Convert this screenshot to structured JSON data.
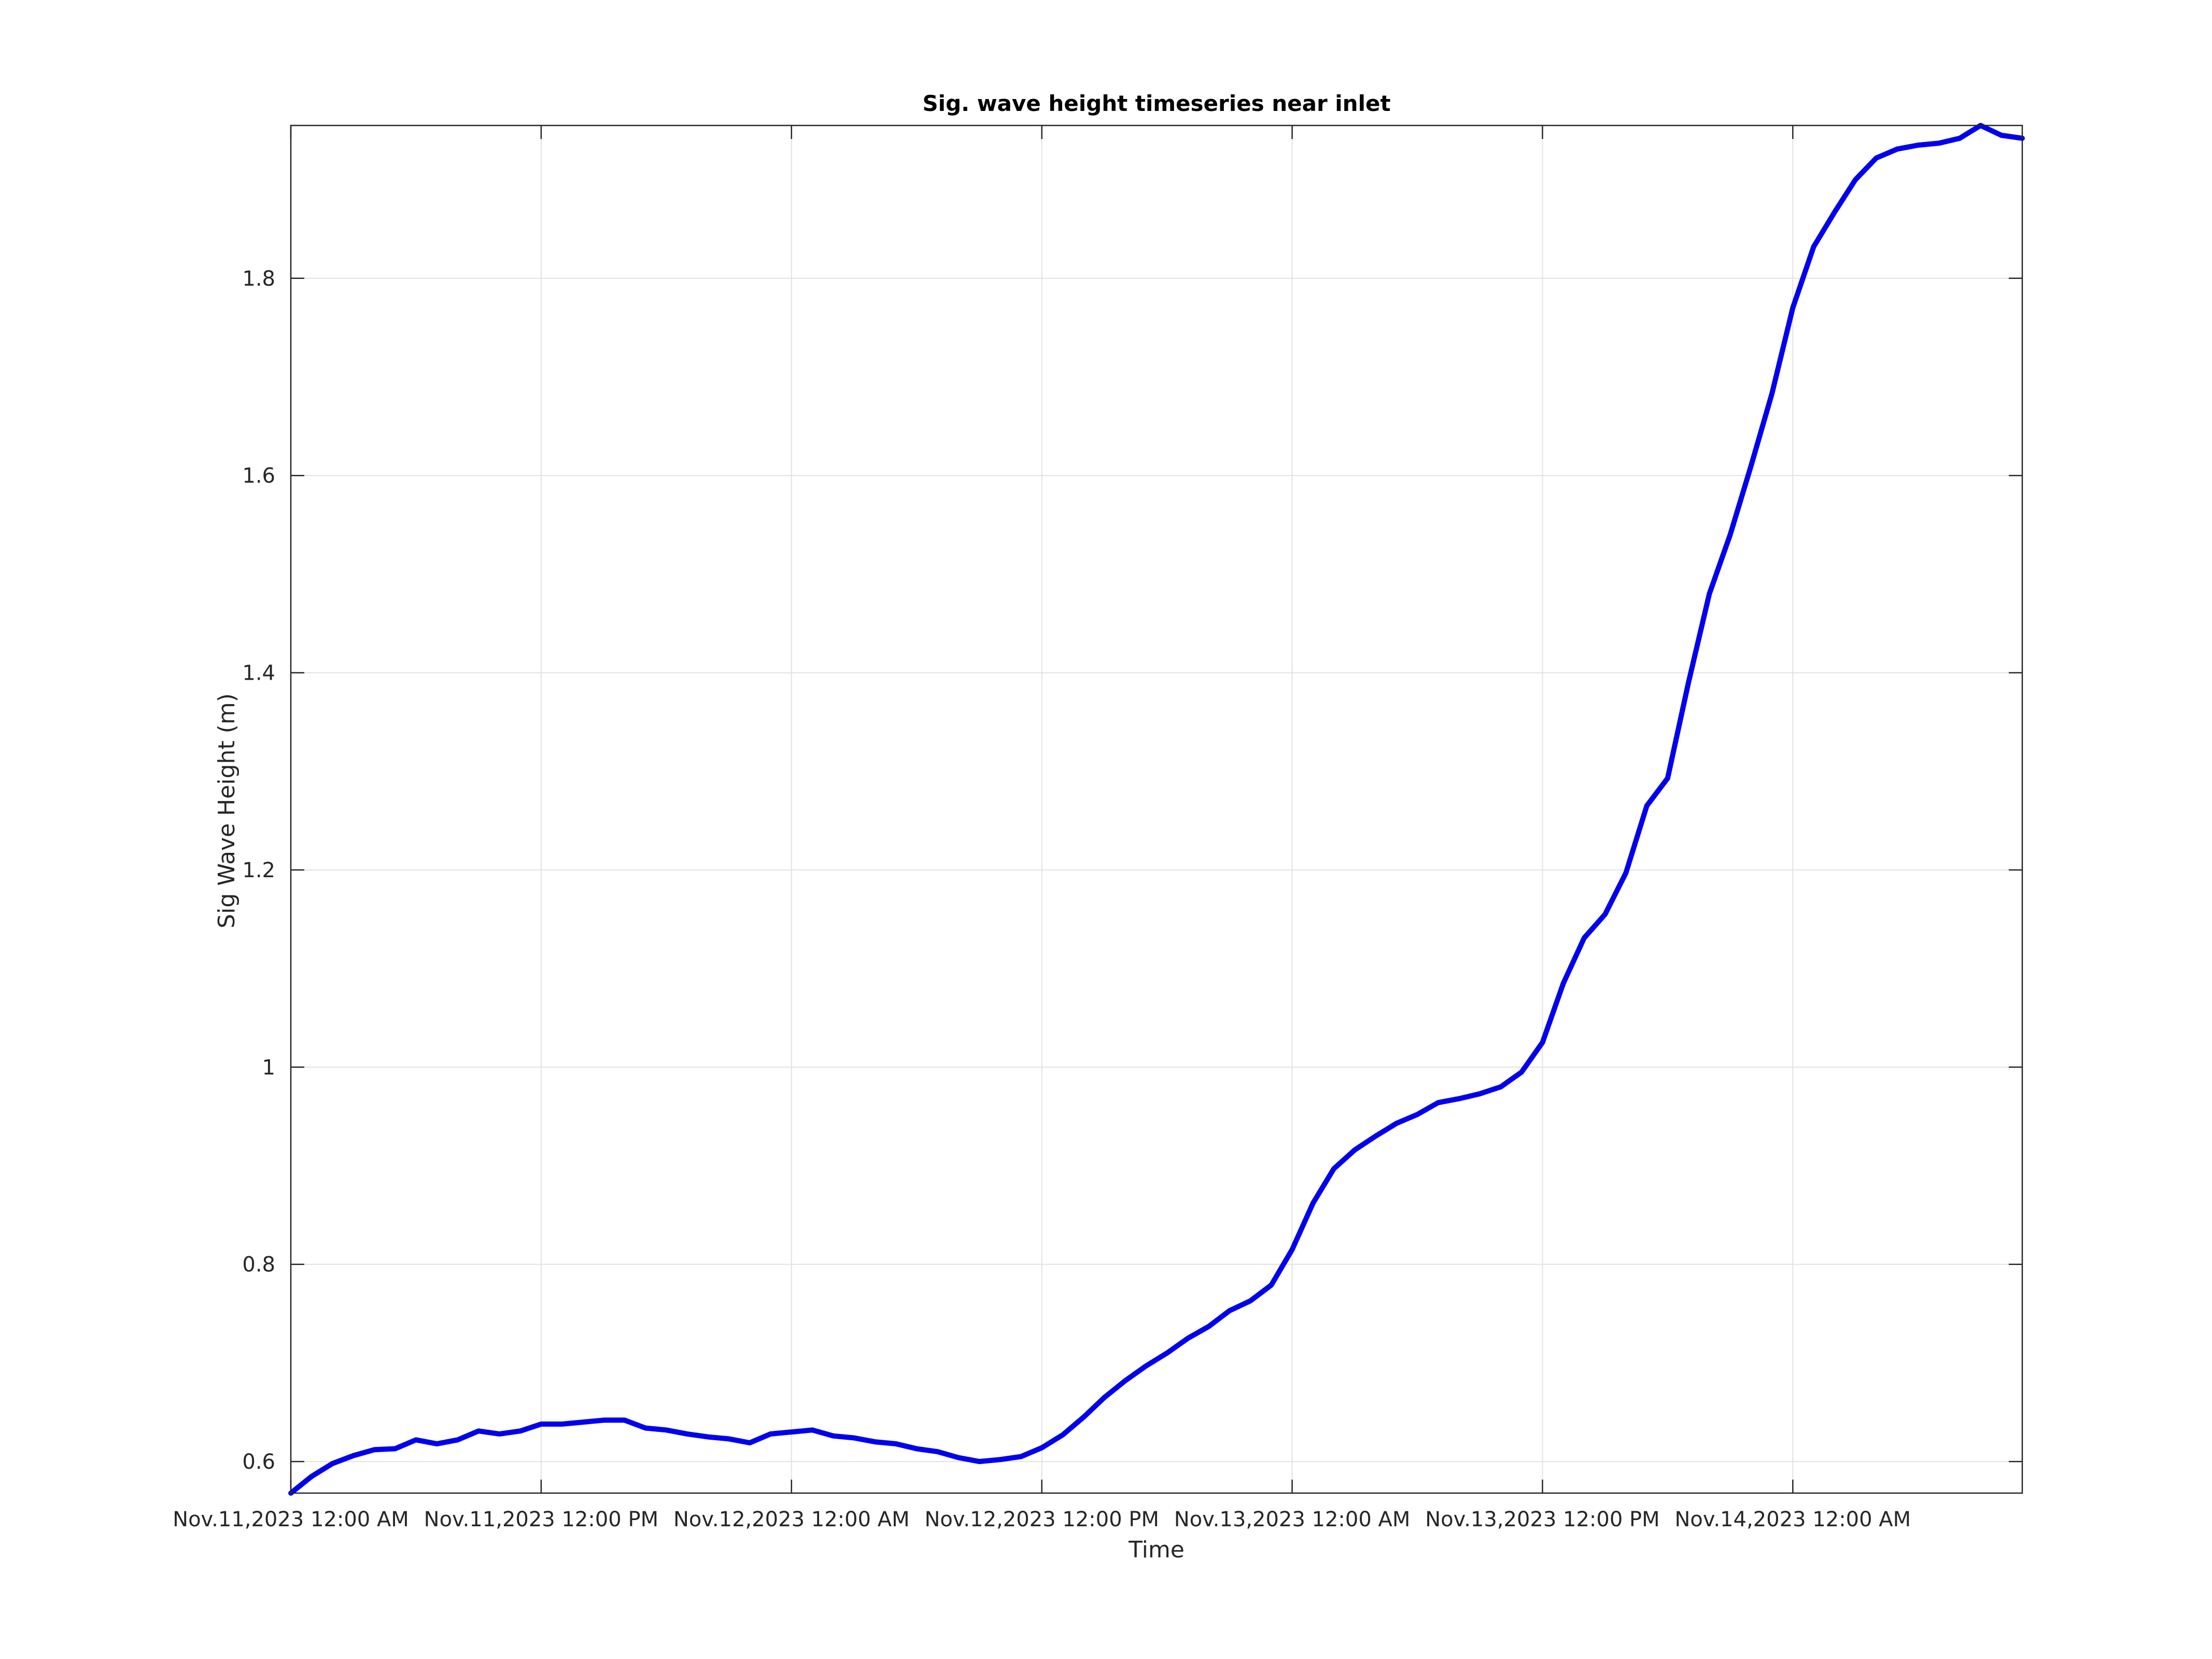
{
  "chart_data": {
    "type": "line",
    "title": "Sig. wave height timeseries near inlet",
    "xlabel": "Time",
    "ylabel": "Sig Wave Height (m)",
    "x_axis": {
      "ticks": [
        "Nov.11,2023 12:00 AM",
        "Nov.11,2023 12:00 PM",
        "Nov.12,2023 12:00 AM",
        "Nov.12,2023 12:00 PM",
        "Nov.13,2023 12:00 AM",
        "Nov.13,2023 12:00 PM",
        "Nov.14,2023 12:00 AM"
      ],
      "range": [
        "2023-11-11 00:00",
        "2023-11-14 11:00"
      ]
    },
    "y_axis": {
      "ticks": [
        "0.6",
        "0.8",
        "1",
        "1.2",
        "1.4",
        "1.6",
        "1.8"
      ],
      "ylim": [
        0.568,
        1.955
      ]
    },
    "grid": true,
    "legend": "none",
    "colors": {
      "line": "#0000ee",
      "grid": "#e2e2e2",
      "axes": "#262626"
    },
    "series": [
      {
        "x": [
          "2023-11-11 00:00",
          "2023-11-11 01:00",
          "2023-11-11 02:00",
          "2023-11-11 03:00",
          "2023-11-11 04:00",
          "2023-11-11 05:00",
          "2023-11-11 06:00",
          "2023-11-11 07:00",
          "2023-11-11 08:00",
          "2023-11-11 09:00",
          "2023-11-11 10:00",
          "2023-11-11 11:00",
          "2023-11-11 12:00",
          "2023-11-11 13:00",
          "2023-11-11 14:00",
          "2023-11-11 15:00",
          "2023-11-11 16:00",
          "2023-11-11 17:00",
          "2023-11-11 18:00",
          "2023-11-11 19:00",
          "2023-11-11 20:00",
          "2023-11-11 21:00",
          "2023-11-11 22:00",
          "2023-11-11 23:00",
          "2023-11-12 00:00",
          "2023-11-12 01:00",
          "2023-11-12 02:00",
          "2023-11-12 03:00",
          "2023-11-12 04:00",
          "2023-11-12 05:00",
          "2023-11-12 06:00",
          "2023-11-12 07:00",
          "2023-11-12 08:00",
          "2023-11-12 09:00",
          "2023-11-12 10:00",
          "2023-11-12 11:00",
          "2023-11-12 12:00",
          "2023-11-12 13:00",
          "2023-11-12 14:00",
          "2023-11-12 15:00",
          "2023-11-12 16:00",
          "2023-11-12 17:00",
          "2023-11-12 18:00",
          "2023-11-12 19:00",
          "2023-11-12 20:00",
          "2023-11-12 21:00",
          "2023-11-12 22:00",
          "2023-11-12 23:00",
          "2023-11-13 00:00",
          "2023-11-13 01:00",
          "2023-11-13 02:00",
          "2023-11-13 03:00",
          "2023-11-13 04:00",
          "2023-11-13 05:00",
          "2023-11-13 06:00",
          "2023-11-13 07:00",
          "2023-11-13 08:00",
          "2023-11-13 09:00",
          "2023-11-13 10:00",
          "2023-11-13 11:00",
          "2023-11-13 12:00",
          "2023-11-13 13:00",
          "2023-11-13 14:00",
          "2023-11-13 15:00",
          "2023-11-13 16:00",
          "2023-11-13 17:00",
          "2023-11-13 18:00",
          "2023-11-13 19:00",
          "2023-11-13 20:00",
          "2023-11-13 21:00",
          "2023-11-13 22:00",
          "2023-11-13 23:00",
          "2023-11-14 00:00",
          "2023-11-14 01:00",
          "2023-11-14 02:00",
          "2023-11-14 03:00",
          "2023-11-14 04:00",
          "2023-11-14 05:00",
          "2023-11-14 06:00",
          "2023-11-14 07:00",
          "2023-11-14 08:00",
          "2023-11-14 09:00",
          "2023-11-14 10:00",
          "2023-11-14 11:00"
        ],
        "y": [
          0.568,
          0.585,
          0.598,
          0.606,
          0.612,
          0.613,
          0.622,
          0.618,
          0.622,
          0.631,
          0.628,
          0.631,
          0.638,
          0.638,
          0.64,
          0.642,
          0.642,
          0.634,
          0.632,
          0.628,
          0.625,
          0.623,
          0.619,
          0.628,
          0.63,
          0.632,
          0.626,
          0.624,
          0.62,
          0.618,
          0.613,
          0.61,
          0.604,
          0.6,
          0.602,
          0.605,
          0.614,
          0.627,
          0.645,
          0.665,
          0.682,
          0.697,
          0.71,
          0.725,
          0.737,
          0.753,
          0.763,
          0.779,
          0.815,
          0.862,
          0.897,
          0.916,
          0.93,
          0.943,
          0.952,
          0.964,
          0.968,
          0.973,
          0.98,
          0.995,
          1.025,
          1.085,
          1.131,
          1.155,
          1.197,
          1.265,
          1.293,
          1.39,
          1.48,
          1.54,
          1.61,
          1.683,
          1.77,
          1.832,
          1.867,
          1.9,
          1.922,
          1.931,
          1.935,
          1.937,
          1.942,
          1.955,
          1.945,
          1.942
        ]
      }
    ]
  }
}
